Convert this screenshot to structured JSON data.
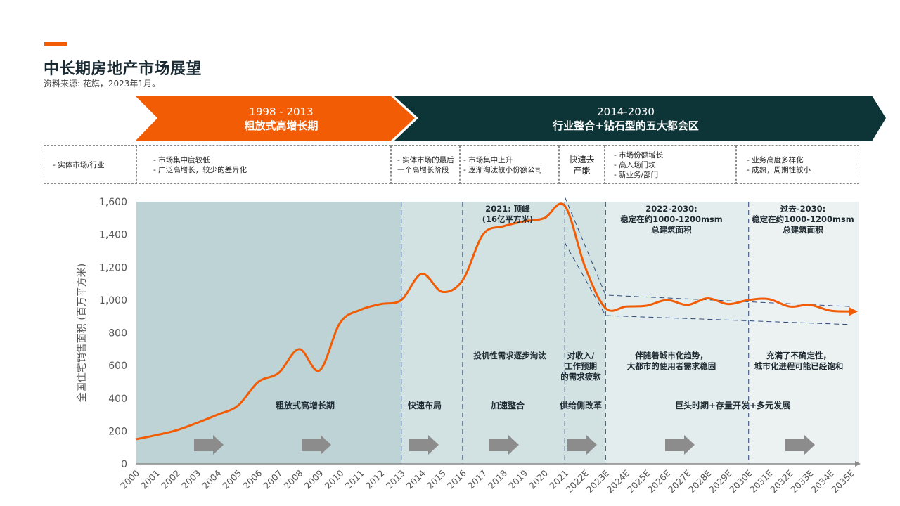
{
  "header": {
    "title": "中长期房地产市场展望",
    "source": "资料来源: 花旗，2023年1月。"
  },
  "phases": [
    {
      "years": "1998 - 2013",
      "label": "粗放式高增长期"
    },
    {
      "years": "2014-2030",
      "label": "行业整合+钻石型的五大都会区"
    }
  ],
  "boxes": [
    {
      "lines": [
        "-  实体市场/行业"
      ]
    },
    {
      "lines": [
        "-  市场集中度较低",
        "-  广泛高增长，较少的差异化"
      ]
    },
    {
      "lines": [
        "-  实体市场的最后",
        "   一个高增长阶段"
      ]
    },
    {
      "lines": [
        "-  市场集中上升",
        "-  逐渐淘汰较小份额公司"
      ]
    },
    {
      "lines": [
        "快速去",
        "产能"
      ]
    },
    {
      "lines": [
        "-  市场份额增长",
        "-  高入场门坎",
        "-  新业务/部门"
      ]
    },
    {
      "lines": [
        "-  业务高度多样化",
        "-  成熟，周期性较小"
      ]
    }
  ],
  "colors": {
    "accent": "#f25c05",
    "dark": "#0d3538",
    "line": "#f25c05",
    "bg_phase1": "#bdd3d5",
    "bg_phase2": "#d2e2e3",
    "bg_phase3": "#e4eded",
    "bg_phase4": "#ecf2f2",
    "arrow": "#8c8c8c",
    "band": "#2d4a7a"
  },
  "chart_data": {
    "type": "line",
    "ylabel": "全国住宅销售面积 (百万平方米)",
    "ylim": [
      0,
      1600
    ],
    "yticks": [
      "0",
      "200",
      "400",
      "600",
      "800",
      "1,000",
      "1,200",
      "1,400",
      "1,600"
    ],
    "categories": [
      "2000",
      "2001",
      "2002",
      "2003",
      "2004",
      "2005",
      "2006",
      "2007",
      "2008",
      "2009",
      "2010",
      "2011",
      "2012",
      "2013",
      "2014",
      "2015",
      "2016",
      "2017",
      "2018",
      "2019",
      "2020",
      "2021",
      "2022E",
      "2023E",
      "2024E",
      "2025E",
      "2026E",
      "2027E",
      "2028E",
      "2029E",
      "2030E",
      "2031E",
      "2032E",
      "2033E",
      "2034E",
      "2035E"
    ],
    "series": [
      {
        "values": [
          150,
          175,
          205,
          250,
          300,
          355,
          500,
          555,
          700,
          570,
          860,
          940,
          975,
          1000,
          1160,
          1050,
          1120,
          1400,
          1450,
          1480,
          1500,
          1575,
          1200,
          950,
          960,
          965,
          1000,
          970,
          1010,
          975,
          1000,
          1005,
          960,
          970,
          935,
          930
        ]
      }
    ],
    "band_upper": {
      "x": [
        "2021",
        "2023E",
        "2035E"
      ],
      "values": [
        1630,
        1030,
        960
      ]
    },
    "band_lower": {
      "x": [
        "2021",
        "2023E",
        "2035E"
      ],
      "values": [
        1350,
        905,
        850
      ]
    },
    "annotations": [
      {
        "lines": [
          "2021: 顶峰",
          "(16亿平方米)"
        ]
      },
      {
        "lines": [
          "2022-2030:",
          "稳定在约1000-1200msm",
          "总建筑面积"
        ]
      },
      {
        "lines": [
          "过去-2030:",
          "稳定在约1000-1200msm",
          "总建筑面积"
        ]
      },
      {
        "lines": [
          "投机性需求逐步淘汰"
        ]
      },
      {
        "lines": [
          "对收入/",
          "工作预期",
          "的需求疲软"
        ]
      },
      {
        "lines": [
          "伴随着城市化趋势，",
          "大都市的使用者需求稳固"
        ]
      },
      {
        "lines": [
          "充满了不确定性，",
          "城市化进程可能已经饱和"
        ]
      }
    ],
    "stage_labels": [
      "粗放式高增长期",
      "快速布局",
      "加速整合",
      "供给侧改革",
      "巨头时期+存量开发+多元发展"
    ]
  }
}
